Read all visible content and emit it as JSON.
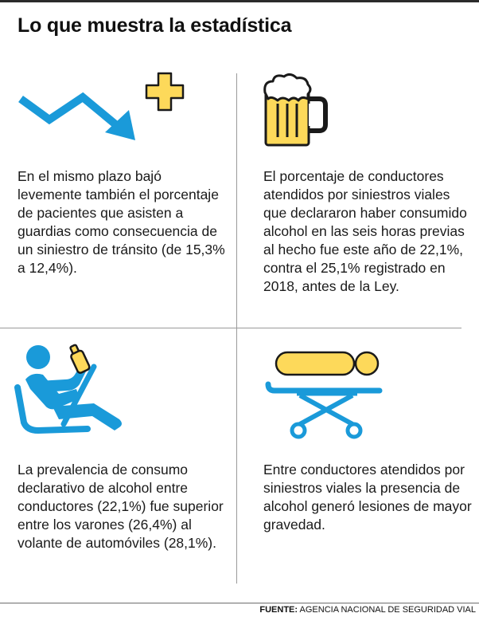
{
  "title": "Lo que muestra la estadística",
  "cells": [
    {
      "text": "En el mismo plazo bajó levemente también el porcentaje de pacientes que asisten a guardias como consecuencia de un siniestro de tránsito (de 15,3% a 12,4%).",
      "icons": [
        "trend-down-arrow-icon",
        "medical-cross-icon"
      ]
    },
    {
      "text": "El porcentaje de conductores atendidos por siniestros viales que declararon haber consumido alcohol en las seis horas previas al hecho fue este año de 22,1%, contra el 25,1% registrado en 2018, antes de la Ley.",
      "icons": [
        "beer-mug-icon"
      ]
    },
    {
      "text": "La prevalencia de consumo declarativo de alcohol entre conductores (22,1%) fue superior entre los varones (26,4%) al volante de automóviles (28,1%).",
      "icons": [
        "driver-with-bottle-icon"
      ]
    },
    {
      "text": "Entre conductores atendidos por siniestros viales la presencia de alcohol generó lesiones de mayor gravedad.",
      "icons": [
        "stretcher-patient-icon"
      ]
    }
  ],
  "footer": {
    "label": "FUENTE:",
    "source": "AGENCIA NACIONAL DE SEGURIDAD VIAL"
  },
  "colors": {
    "blue": "#1a9ad9",
    "yellow": "#fdd95a",
    "outline": "#1a1a1a",
    "rule": "#9a9a9a"
  }
}
